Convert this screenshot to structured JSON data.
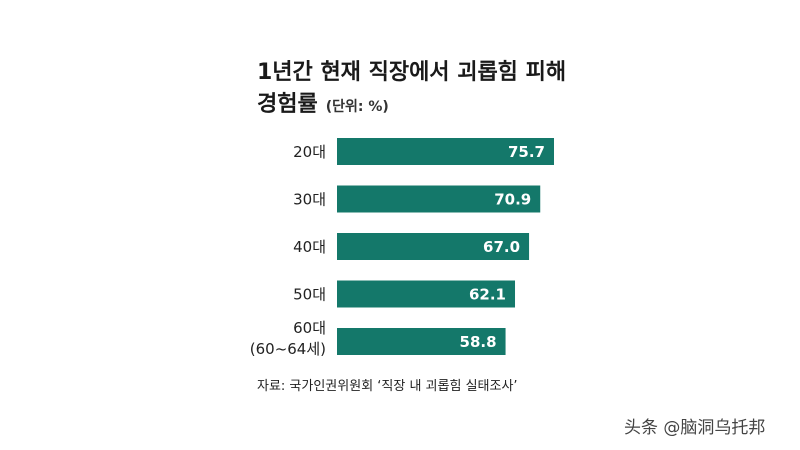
{
  "chart_data": {
    "type": "bar",
    "orientation": "horizontal",
    "title": "1년간 현재 직장에서 괴롭힘 피해 경험률",
    "title_lines": [
      "1년간 현재 직장에서 괴롭힘 피해",
      "경험률"
    ],
    "unit": "(단위: %)",
    "categories": [
      {
        "lines": [
          "20대"
        ]
      },
      {
        "lines": [
          "30대"
        ]
      },
      {
        "lines": [
          "40대"
        ]
      },
      {
        "lines": [
          "50대"
        ]
      },
      {
        "lines": [
          "60대",
          "(60~64세)"
        ]
      }
    ],
    "values": [
      75.7,
      70.9,
      67.0,
      62.1,
      58.8
    ],
    "value_labels": [
      "75.7",
      "70.9",
      "67.0",
      "62.1",
      "58.8"
    ],
    "bar_color": "#14786a",
    "source": "자료: 국가인권위원회 ‘직장 내 괴롭힘 실태조사’",
    "grid": false,
    "legend": "none"
  },
  "watermark": "头条 @脑洞乌托邦"
}
